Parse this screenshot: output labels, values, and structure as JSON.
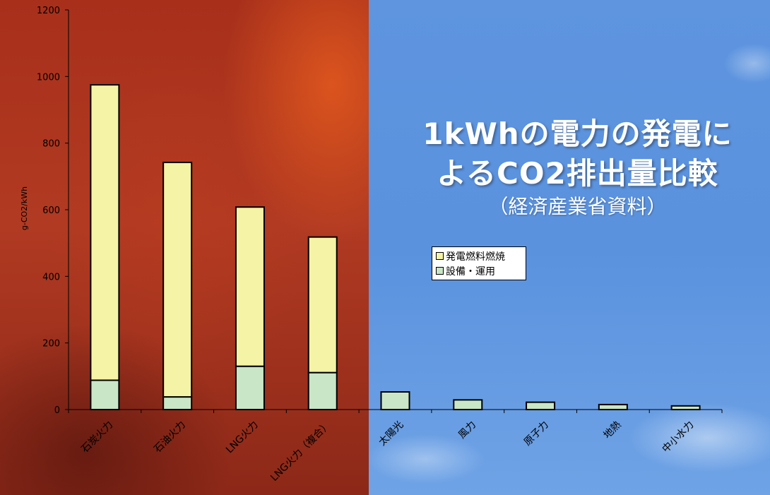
{
  "title": {
    "line1": "1kWhの電力の発電に",
    "line2": "よるCO2排出量比較",
    "subtitle": "（経済産業省資料）"
  },
  "chart_data": {
    "type": "bar",
    "stacked": true,
    "ylabel": "g-CO2/kWh",
    "ylim": [
      0,
      1200
    ],
    "yticks": [
      0,
      200,
      400,
      600,
      800,
      1000,
      1200
    ],
    "categories": [
      "石炭火力",
      "石油火力",
      "LNG火力",
      "LNG火力（複合）",
      "太陽光",
      "風力",
      "原子力",
      "地熱",
      "中小水力"
    ],
    "series": [
      {
        "name": "設備・運用",
        "color": "#c9e6c6",
        "values": [
          88,
          38,
          130,
          111,
          53,
          29,
          22,
          15,
          11
        ]
      },
      {
        "name": "発電燃料燃焼",
        "color": "#f5f3a5",
        "values": [
          887,
          704,
          478,
          407,
          0,
          0,
          0,
          0,
          0
        ]
      }
    ],
    "legend": {
      "position": "center",
      "entries": [
        "発電燃料燃焼",
        "設備・運用"
      ]
    },
    "grid": false
  }
}
